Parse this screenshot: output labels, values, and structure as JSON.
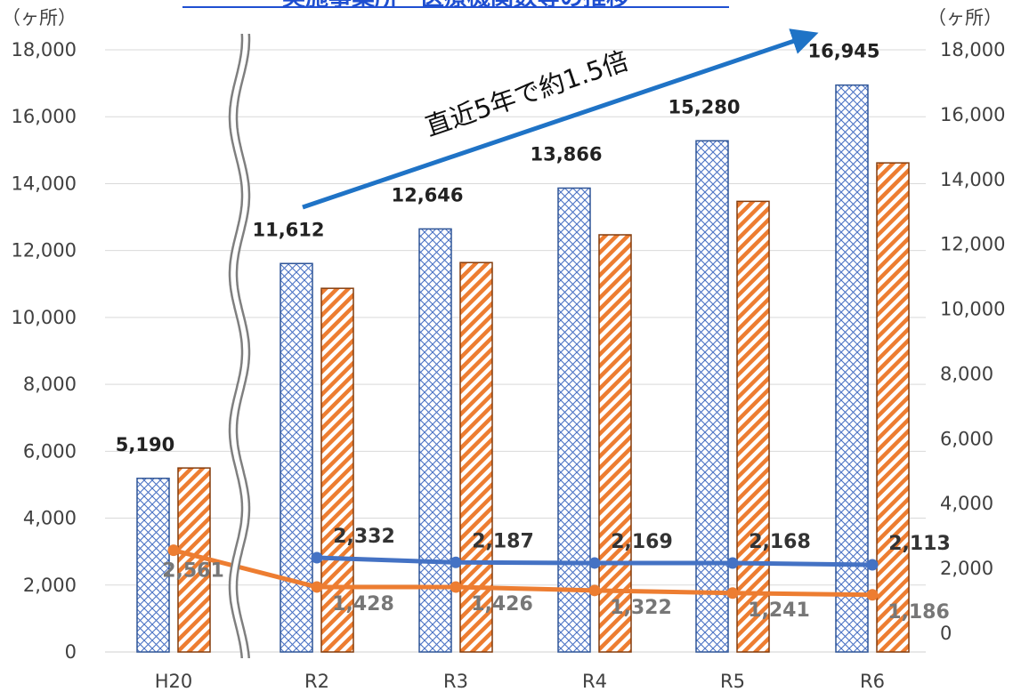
{
  "chart_data": {
    "type": "bar",
    "title": "実施事業所・医療機関数等の推移",
    "left_unit": "（ヶ所）",
    "right_unit": "（ヶ所）",
    "categories": [
      "H20",
      "R2",
      "R3",
      "R4",
      "R5",
      "R6"
    ],
    "left_axis": {
      "min": 0,
      "max": 18000,
      "ticks": [
        "0",
        "2,000",
        "4,000",
        "6,000",
        "8,000",
        "10,000",
        "12,000",
        "14,000",
        "16,000",
        "18,000"
      ]
    },
    "right_axis": {
      "min": 0,
      "max": 18000,
      "ticks": [
        "0",
        "2,000",
        "4,000",
        "6,000",
        "8,000",
        "10,000",
        "12,000",
        "14,000",
        "16,000",
        "18,000"
      ]
    },
    "bar_series": [
      {
        "values": [
          5190,
          11612,
          12646,
          13866,
          15280,
          16945
        ],
        "labels": [
          "5,190",
          "11,612",
          "12,646",
          "13,866",
          "15,280",
          "16,945"
        ],
        "color": "#4a72c4",
        "pattern": "cross-hatch"
      },
      {
        "values": [
          5500,
          10870,
          11640,
          12470,
          13470,
          14620
        ],
        "labels": [
          "",
          "",
          "",
          "",
          "",
          ""
        ],
        "color": "#ed7d31",
        "pattern": "diagonal-stripe"
      }
    ],
    "line_series": [
      {
        "values": [
          null,
          2332,
          2187,
          2169,
          2168,
          2113
        ],
        "labels": [
          "",
          "2,332",
          "2,187",
          "2,169",
          "2,168",
          "2,113"
        ],
        "color": "#4472c4"
      },
      {
        "values": [
          2561,
          1428,
          1426,
          1322,
          1241,
          1186
        ],
        "labels": [
          "2,561",
          "1,428",
          "1,426",
          "1,322",
          "1,241",
          "1,186"
        ],
        "color": "#ed7d31"
      }
    ],
    "annotation": {
      "text": "直近5年で約1.5倍",
      "color": "#1f73c6"
    },
    "axis_break": "between H20 and R2",
    "grid": true
  }
}
